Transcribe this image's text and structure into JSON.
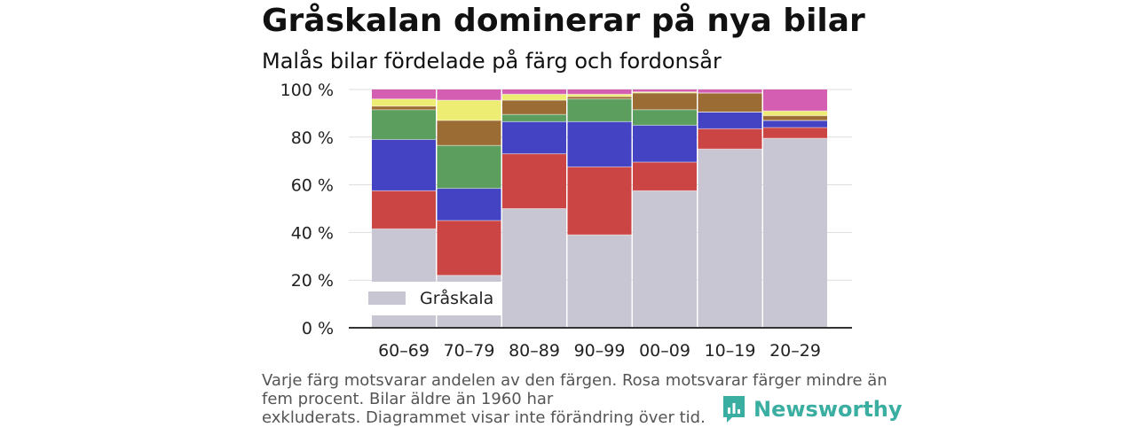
{
  "header": {
    "title": "Gråskalan dominerar på nya bilar",
    "subtitle": "Malås bilar fördelade på färg och fordonsår"
  },
  "footnote": {
    "lines": [
      "Varje färg motsvarar andelen av den färgen. Rosa motsvarar färger mindre än",
      "fem procent. Bilar äldre än 1960 har",
      "exkluderats. Diagrammet visar inte förändring över tid."
    ]
  },
  "brand": {
    "name": "Newsworthy",
    "icon": "newsworthy-logo-icon",
    "color": "#3aaea0"
  },
  "chart_data": {
    "type": "bar",
    "stacked": true,
    "categories": [
      "60–69",
      "70–79",
      "80–89",
      "90–99",
      "00–09",
      "10–19",
      "20–29"
    ],
    "ylim": [
      0,
      100
    ],
    "yticks": [
      0,
      20,
      40,
      60,
      80,
      100
    ],
    "ytick_labels": [
      "0 %",
      "20 %",
      "40 %",
      "60 %",
      "80 %",
      "100 %"
    ],
    "xlabel": "",
    "ylabel": "",
    "grid": true,
    "legend": {
      "placement": "bottom-left",
      "entries": [
        "Gråskala"
      ]
    },
    "series": [
      {
        "name": "Gråskala",
        "color": "#c8c6d2",
        "values": [
          41.5,
          22,
          50,
          39,
          57.5,
          75,
          79.5
        ]
      },
      {
        "color": "#cc4545",
        "values": [
          16,
          23,
          23,
          28.5,
          12,
          8.5,
          4.5
        ]
      },
      {
        "color": "#4343c3",
        "values": [
          21.5,
          13.5,
          13.5,
          19,
          15.5,
          7,
          3
        ]
      },
      {
        "color": "#5b9e5e",
        "values": [
          12.5,
          18,
          3,
          9.5,
          6.5,
          0,
          0
        ]
      },
      {
        "color": "#9b6c33",
        "values": [
          1.5,
          10.5,
          6,
          1,
          7,
          8,
          2
        ]
      },
      {
        "color": "#eded74",
        "values": [
          3,
          8.5,
          2.5,
          1,
          0.5,
          0,
          2
        ]
      },
      {
        "color": "#d45fb2",
        "values": [
          4,
          4.5,
          2,
          2,
          1,
          1.5,
          9
        ]
      }
    ]
  }
}
